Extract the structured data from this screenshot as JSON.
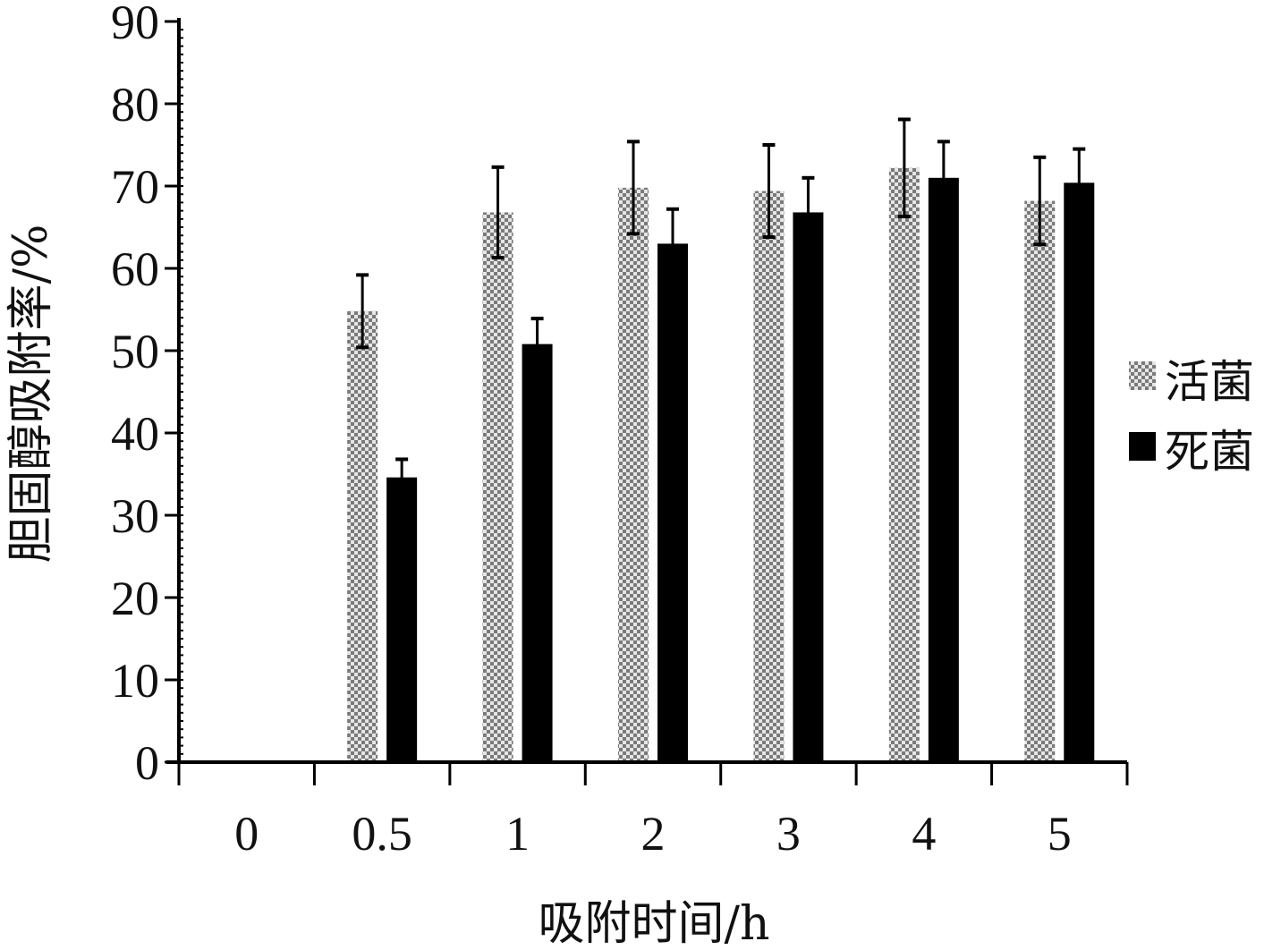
{
  "chart_data": {
    "type": "bar",
    "title": "",
    "xlabel": "吸附时间/h",
    "ylabel": "胆固醇吸附率/%",
    "categories": [
      "0",
      "0.5",
      "1",
      "2",
      "3",
      "4",
      "5"
    ],
    "ylim": [
      0,
      90
    ],
    "yticks": [
      "0",
      "10",
      "20",
      "30",
      "40",
      "50",
      "60",
      "70",
      "80",
      "90"
    ],
    "legend_position": "right",
    "series": [
      {
        "name": "活菌",
        "pattern": "checkered",
        "color": "#9a9a9a",
        "values": [
          0,
          54.8,
          66.8,
          69.8,
          69.4,
          72.2,
          68.2
        ],
        "errors": [
          0,
          4.4,
          5.5,
          5.6,
          5.6,
          5.9,
          5.3
        ]
      },
      {
        "name": "死菌",
        "pattern": "solid",
        "color": "#000000",
        "values": [
          0,
          34.6,
          50.8,
          63.0,
          66.8,
          71.0,
          70.4
        ],
        "errors": [
          0,
          2.2,
          3.1,
          4.2,
          4.2,
          4.4,
          4.1
        ]
      }
    ]
  }
}
